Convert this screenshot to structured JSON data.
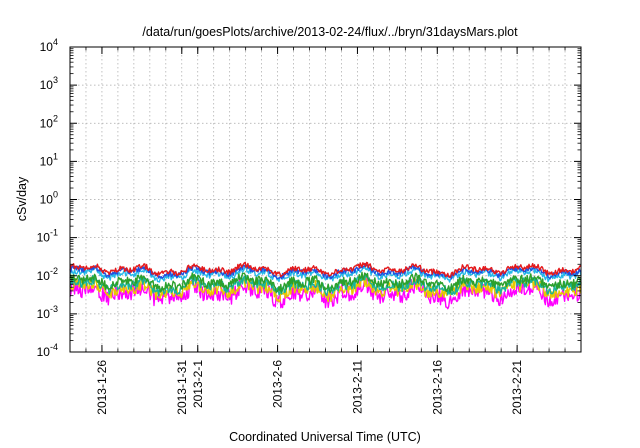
{
  "chart_data": {
    "type": "line",
    "title": "/data/run/goesPlots/archive/2013-02-24/flux/../bryn/31daysMars.plot",
    "xlabel": "Coordinated Universal Time (UTC)",
    "ylabel": "cSv/day",
    "y_scale": "log",
    "ylim": [
      0.0001,
      10000
    ],
    "xlim": [
      "2013-01-24",
      "2013-02-25"
    ],
    "grid": true,
    "y_ticks": [
      {
        "base": "10",
        "exp": "4"
      },
      {
        "base": "10",
        "exp": "3"
      },
      {
        "base": "10",
        "exp": "2"
      },
      {
        "base": "10",
        "exp": "1"
      },
      {
        "base": "10",
        "exp": "0"
      },
      {
        "base": "10",
        "exp": "-1"
      },
      {
        "base": "10",
        "exp": "-2"
      },
      {
        "base": "10",
        "exp": "-3"
      },
      {
        "base": "10",
        "exp": "-4"
      }
    ],
    "x_ticks": [
      {
        "date": "2013-01-26",
        "label": "2013-1-26"
      },
      {
        "date": "2013-01-31",
        "label": "2013-1-31"
      },
      {
        "date": "2013-02-01",
        "label": "2013-2-1"
      },
      {
        "date": "2013-02-06",
        "label": "2013-2-6"
      },
      {
        "date": "2013-02-11",
        "label": "2013-2-11"
      },
      {
        "date": "2013-02-16",
        "label": "2013-2-16"
      },
      {
        "date": "2013-02-21",
        "label": "2013-2-21"
      }
    ],
    "series": [
      {
        "color": "#e41a1c",
        "level": 0.0145,
        "spread": 0.07
      },
      {
        "color": "#1f4fe0",
        "level": 0.0128,
        "spread": 0.07
      },
      {
        "color": "#25b8e8",
        "level": 0.0108,
        "spread": 0.08
      },
      {
        "color": "#2ca02c",
        "level": 0.0068,
        "spread": 0.12
      },
      {
        "color": "#17b39a",
        "level": 0.0056,
        "spread": 0.13
      },
      {
        "color": "#e8c800",
        "level": 0.0045,
        "spread": 0.16
      },
      {
        "color": "#ff00ff",
        "level": 0.0035,
        "spread": 0.22
      }
    ]
  }
}
